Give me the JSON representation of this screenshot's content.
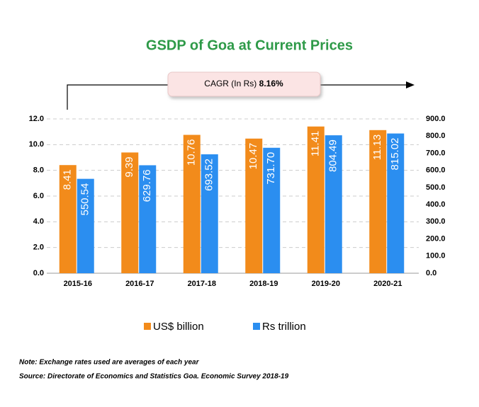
{
  "chart_data": {
    "type": "bar",
    "title": "GSDP of Goa at Current Prices",
    "annotation": {
      "label": "CAGR  (In Rs)",
      "value": "8.16%"
    },
    "categories": [
      "2015-16",
      "2016-17",
      "2017-18",
      "2018-19",
      "2019-20",
      "2020-21"
    ],
    "series": [
      {
        "name": "US$ billion",
        "color": "#f28b1b",
        "values": [
          8.41,
          9.39,
          10.76,
          10.47,
          11.41,
          11.13
        ]
      },
      {
        "name": "Rs trillion",
        "color": "#2b8ef0",
        "axis": "y2",
        "values": [
          550.54,
          629.76,
          693.52,
          731.7,
          804.49,
          815.02
        ],
        "value_labels": [
          "550.54",
          "629.76",
          "693.52",
          "731.70",
          "804.49",
          "815.02"
        ]
      }
    ],
    "ylim": [
      0,
      12
    ],
    "yticks": [
      {
        "value": 0,
        "label": "0.0"
      },
      {
        "value": 2,
        "label": "2.0"
      },
      {
        "value": 4,
        "label": "4.0"
      },
      {
        "value": 6,
        "label": "6.0"
      },
      {
        "value": 8,
        "label": "8.0"
      },
      {
        "value": 10,
        "label": "10.0"
      },
      {
        "value": 12,
        "label": "12.0"
      }
    ],
    "y2lim": [
      0,
      900
    ],
    "y2ticks": [
      {
        "value": 0,
        "label": "0.0"
      },
      {
        "value": 100,
        "label": "100.0"
      },
      {
        "value": 200,
        "label": "200.0"
      },
      {
        "value": 300,
        "label": "300.0"
      },
      {
        "value": 400,
        "label": "400.0"
      },
      {
        "value": 500,
        "label": "500.0"
      },
      {
        "value": 600,
        "label": "600.0"
      },
      {
        "value": 700,
        "label": "700.0"
      },
      {
        "value": 800,
        "label": "800.0"
      },
      {
        "value": 900,
        "label": "900.0"
      }
    ],
    "grid": true,
    "notes": [
      "Note: Exchange rates used are averages of each year",
      "Source: Directorate of Economics and Statistics Goa. Economic Survey 2018-19"
    ]
  }
}
